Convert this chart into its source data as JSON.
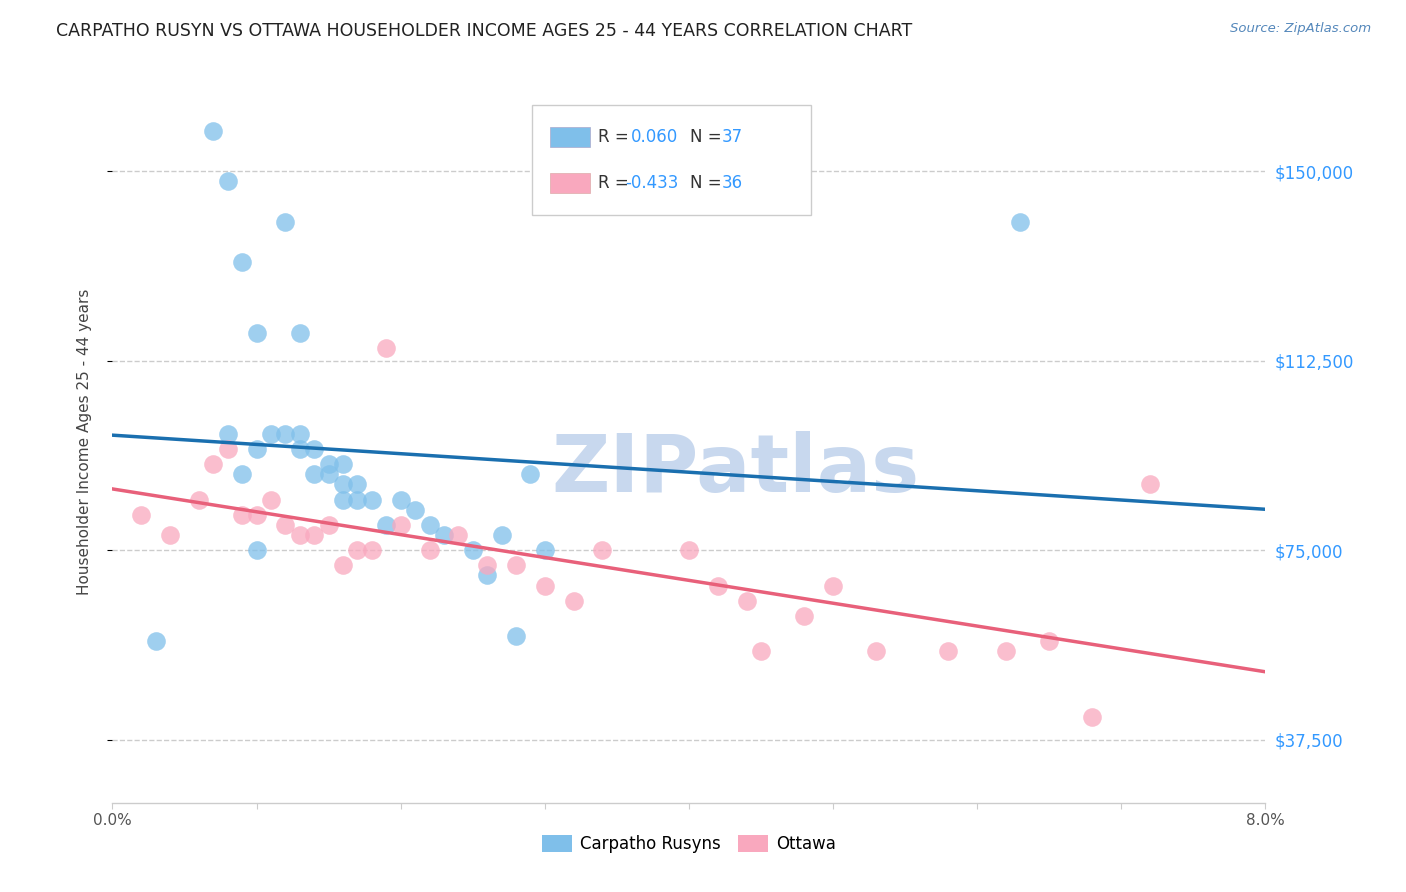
{
  "title": "CARPATHO RUSYN VS OTTAWA HOUSEHOLDER INCOME AGES 25 - 44 YEARS CORRELATION CHART",
  "source": "Source: ZipAtlas.com",
  "ylabel": "Householder Income Ages 25 - 44 years",
  "legend_labels": [
    "Carpatho Rusyns",
    "Ottawa"
  ],
  "legend_r_label1": "R = ",
  "legend_r_val1": " 0.060",
  "legend_n_label1": "N = ",
  "legend_n_val1": "37",
  "legend_r_label2": "R = ",
  "legend_r_val2": "-0.433",
  "legend_n_label2": "N = ",
  "legend_n_val2": "36",
  "watermark": "ZIPatlas",
  "xmin": 0.0,
  "xmax": 0.08,
  "ymin": 25000,
  "ymax": 168000,
  "yticks": [
    37500,
    75000,
    112500,
    150000
  ],
  "ytick_labels": [
    "$37,500",
    "$75,000",
    "$112,500",
    "$150,000"
  ],
  "xticks": [
    0.0,
    0.01,
    0.02,
    0.03,
    0.04,
    0.05,
    0.06,
    0.07,
    0.08
  ],
  "xtick_labels": [
    "0.0%",
    "",
    "",
    "",
    "",
    "",
    "",
    "",
    "8.0%"
  ],
  "blue_color": "#7fbfea",
  "blue_line_color": "#1a6faf",
  "pink_color": "#f9a8be",
  "pink_line_color": "#e8607a",
  "blue_scatter_x": [
    0.003,
    0.007,
    0.008,
    0.009,
    0.01,
    0.01,
    0.011,
    0.012,
    0.013,
    0.013,
    0.014,
    0.014,
    0.015,
    0.015,
    0.016,
    0.016,
    0.016,
    0.017,
    0.017,
    0.018,
    0.019,
    0.02,
    0.021,
    0.022,
    0.023,
    0.025,
    0.026,
    0.027,
    0.028,
    0.029,
    0.03,
    0.012,
    0.013,
    0.063,
    0.008,
    0.009,
    0.01
  ],
  "blue_scatter_y": [
    57000,
    158000,
    148000,
    132000,
    118000,
    95000,
    98000,
    98000,
    98000,
    95000,
    95000,
    90000,
    90000,
    92000,
    92000,
    88000,
    85000,
    88000,
    85000,
    85000,
    80000,
    85000,
    83000,
    80000,
    78000,
    75000,
    70000,
    78000,
    58000,
    90000,
    75000,
    140000,
    118000,
    140000,
    98000,
    90000,
    75000
  ],
  "pink_scatter_x": [
    0.002,
    0.004,
    0.006,
    0.007,
    0.008,
    0.009,
    0.01,
    0.011,
    0.012,
    0.013,
    0.014,
    0.015,
    0.016,
    0.017,
    0.018,
    0.019,
    0.02,
    0.022,
    0.024,
    0.026,
    0.028,
    0.03,
    0.032,
    0.034,
    0.04,
    0.042,
    0.044,
    0.045,
    0.048,
    0.05,
    0.053,
    0.058,
    0.062,
    0.065,
    0.068,
    0.072
  ],
  "pink_scatter_y": [
    82000,
    78000,
    85000,
    92000,
    95000,
    82000,
    82000,
    85000,
    80000,
    78000,
    78000,
    80000,
    72000,
    75000,
    75000,
    115000,
    80000,
    75000,
    78000,
    72000,
    72000,
    68000,
    65000,
    75000,
    75000,
    68000,
    65000,
    55000,
    62000,
    68000,
    55000,
    55000,
    55000,
    57000,
    42000,
    88000
  ],
  "background_color": "#ffffff",
  "grid_color": "#cccccc",
  "title_fontsize": 12.5,
  "axis_label_fontsize": 11,
  "tick_fontsize": 11,
  "right_tick_color": "#3399ff",
  "watermark_color": "#c8d8ee",
  "watermark_fontsize": 58
}
